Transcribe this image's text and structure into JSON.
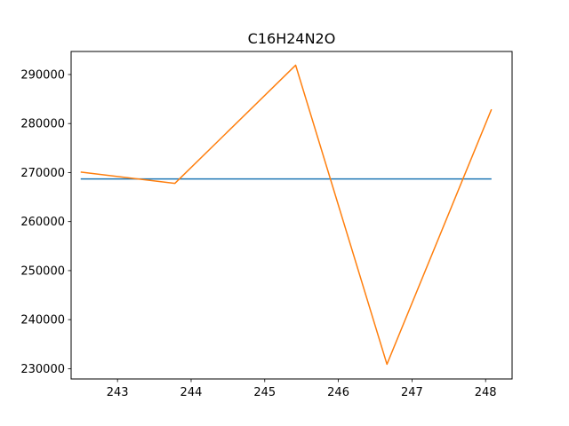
{
  "chart_data": {
    "type": "line",
    "title": "C16H24N2O",
    "xlabel": "",
    "ylabel": "",
    "xlim": [
      242.37,
      248.36
    ],
    "ylim": [
      227900,
      294700
    ],
    "xticks": [
      243,
      244,
      245,
      246,
      247,
      248
    ],
    "yticks": [
      230000,
      240000,
      250000,
      260000,
      270000,
      280000,
      290000
    ],
    "grid": false,
    "series": [
      {
        "color": "#1f77b4",
        "x": [
          242.5,
          248.08
        ],
        "y": [
          268700,
          268700
        ]
      },
      {
        "color": "#ff7f0e",
        "x": [
          242.5,
          243.78,
          245.42,
          246.66,
          248.08
        ],
        "y": [
          270100,
          267800,
          291900,
          230900,
          282900
        ]
      }
    ]
  }
}
